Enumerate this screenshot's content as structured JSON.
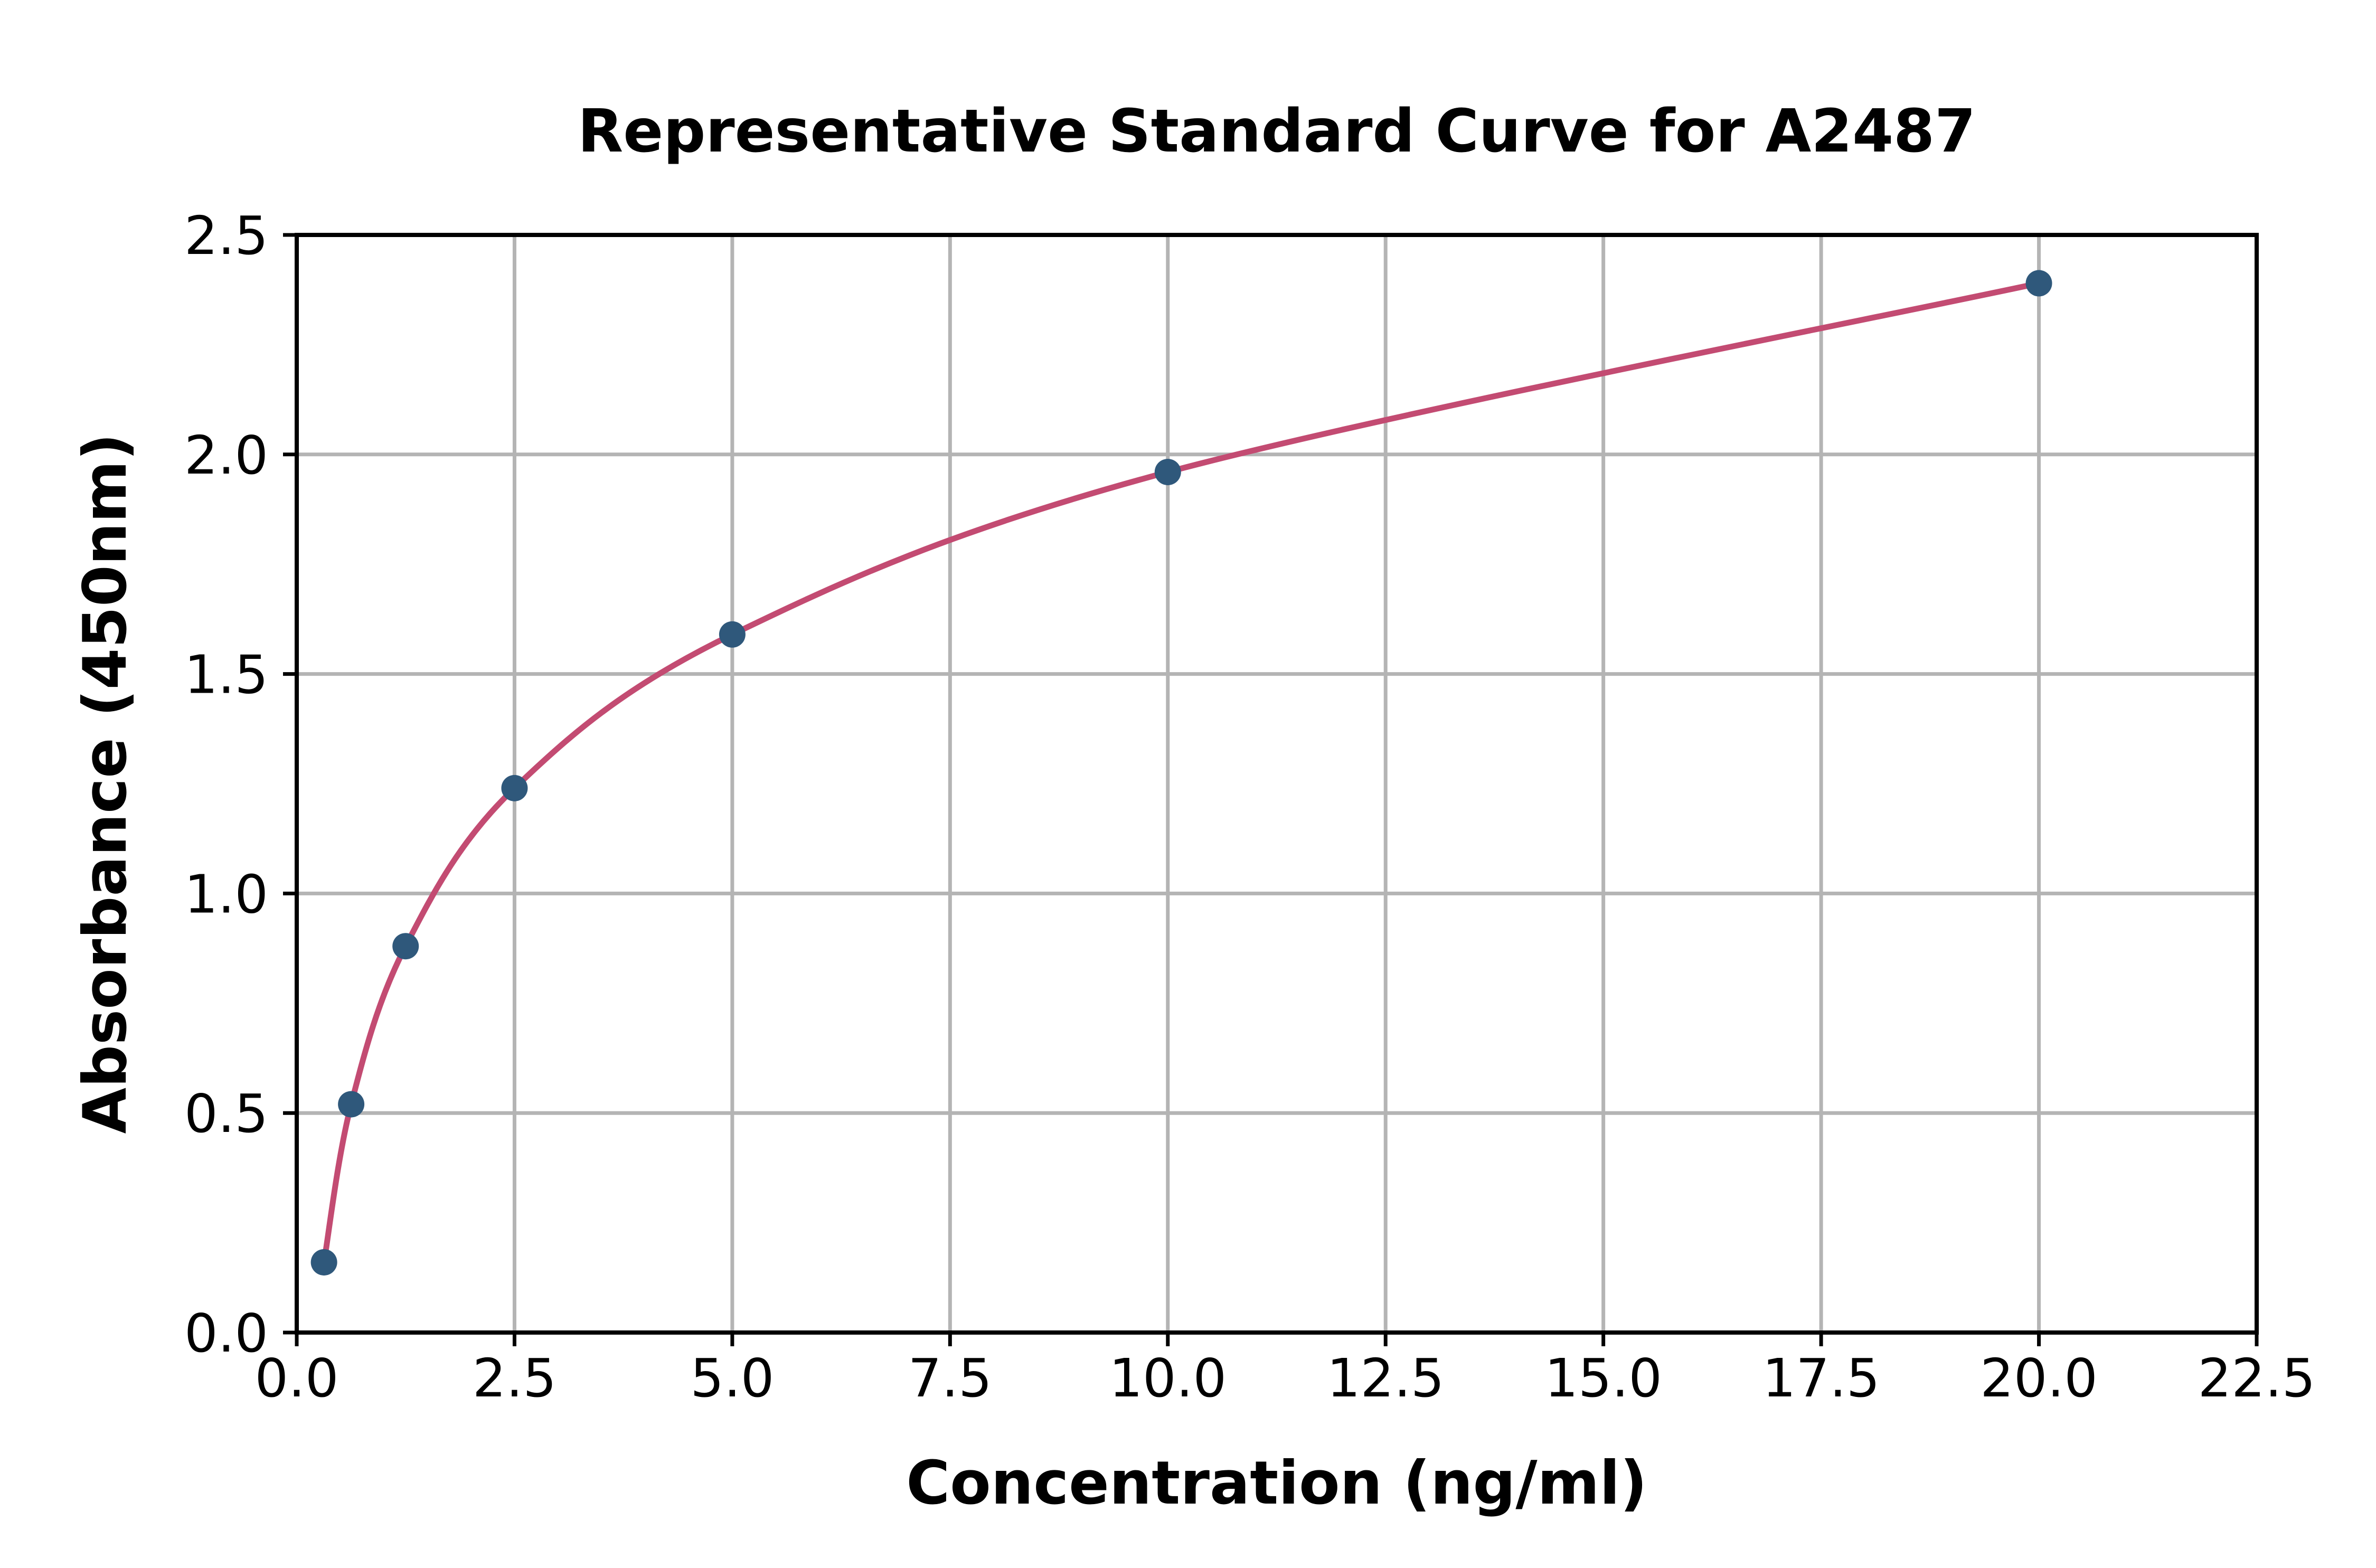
{
  "page": {
    "background_color": "#ffffff"
  },
  "chart_data": {
    "type": "scatter",
    "title": "Representative Standard Curve for A2487",
    "xlabel": "Concentration (ng/ml)",
    "ylabel": "Absorbance (450nm)",
    "xlim": [
      0,
      22.5
    ],
    "ylim": [
      0,
      2.5
    ],
    "xticks": [
      0.0,
      2.5,
      5.0,
      7.5,
      10.0,
      12.5,
      15.0,
      17.5,
      20.0,
      22.5
    ],
    "xtick_labels": [
      "0.0",
      "2.5",
      "5.0",
      "7.5",
      "10.0",
      "12.5",
      "15.0",
      "17.5",
      "20.0",
      "22.5"
    ],
    "yticks": [
      0.0,
      0.5,
      1.0,
      1.5,
      2.0,
      2.5
    ],
    "ytick_labels": [
      "0.0",
      "0.5",
      "1.0",
      "1.5",
      "2.0",
      "2.5"
    ],
    "grid": true,
    "legend": false,
    "series": [
      {
        "name": "standard-points-with-fitted-curve",
        "x": [
          0.313,
          0.625,
          1.25,
          2.5,
          5,
          10,
          20
        ],
        "y": [
          0.16,
          0.52,
          0.88,
          1.24,
          1.59,
          1.96,
          2.39
        ]
      }
    ],
    "colors": {
      "curve": "#C34B72",
      "marker": "#2F587B",
      "grid": "#B4B4B4",
      "spine": "#000000",
      "text": "#000000"
    }
  }
}
